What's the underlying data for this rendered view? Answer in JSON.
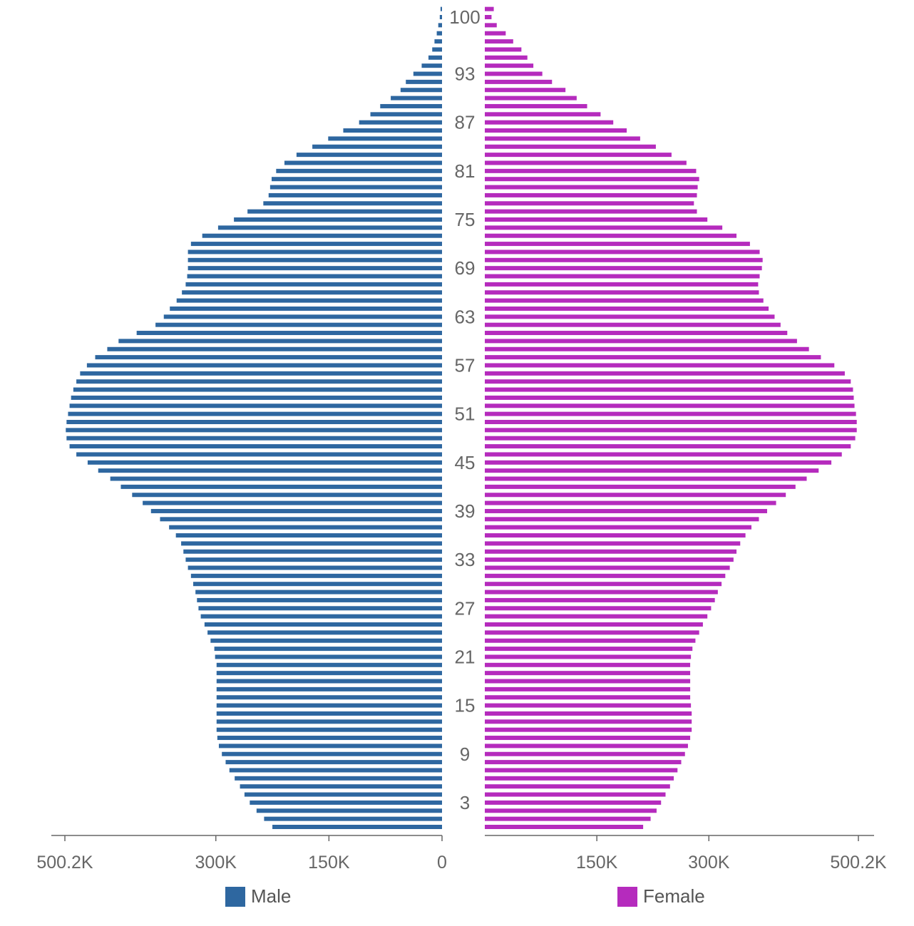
{
  "colors": {
    "male": "#2e67a0",
    "female": "#b52bbd",
    "axis": "#666666",
    "label": "#666666"
  },
  "legend": {
    "male_label": "Male",
    "female_label": "Female"
  },
  "chart_data": {
    "type": "bar",
    "orientation": "horizontal",
    "subtype": "population-pyramid",
    "title": "",
    "ages": [
      0,
      1,
      2,
      3,
      4,
      5,
      6,
      7,
      8,
      9,
      10,
      11,
      12,
      13,
      14,
      15,
      16,
      17,
      18,
      19,
      20,
      21,
      22,
      23,
      24,
      25,
      26,
      27,
      28,
      29,
      30,
      31,
      32,
      33,
      34,
      35,
      36,
      37,
      38,
      39,
      40,
      41,
      42,
      43,
      44,
      45,
      46,
      47,
      48,
      49,
      50,
      51,
      52,
      53,
      54,
      55,
      56,
      57,
      58,
      59,
      60,
      61,
      62,
      63,
      64,
      65,
      66,
      67,
      68,
      69,
      70,
      71,
      72,
      73,
      74,
      75,
      76,
      77,
      78,
      79,
      80,
      81,
      82,
      83,
      84,
      85,
      86,
      87,
      88,
      89,
      90,
      91,
      92,
      93,
      94,
      95,
      96,
      97,
      98,
      99,
      100,
      101
    ],
    "age_tick_labels": [
      "3",
      "9",
      "15",
      "21",
      "27",
      "33",
      "39",
      "45",
      "51",
      "57",
      "63",
      "69",
      "75",
      "81",
      "87",
      "93",
      "100"
    ],
    "x_tick_labels": [
      "500.2K",
      "300K",
      "150K",
      "0",
      "150K",
      "300K",
      "500.2K"
    ],
    "x_range": [
      0,
      500200
    ],
    "series": [
      {
        "name": "Male",
        "values": [
          225000,
          236000,
          246000,
          255000,
          262000,
          268000,
          275000,
          282000,
          287000,
          292000,
          296000,
          298000,
          299000,
          299000,
          299000,
          299000,
          299000,
          299000,
          299000,
          299000,
          299000,
          301000,
          302000,
          307000,
          311000,
          315000,
          320000,
          323000,
          325000,
          327000,
          330000,
          333000,
          337000,
          340000,
          343000,
          346000,
          353000,
          362000,
          374000,
          386000,
          397000,
          411000,
          426000,
          440000,
          456000,
          470000,
          485000,
          494000,
          498000,
          499000,
          498000,
          496000,
          494000,
          492000,
          489000,
          485000,
          480000,
          471000,
          460000,
          444000,
          429000,
          405000,
          380000,
          369000,
          361000,
          352000,
          345000,
          340000,
          338000,
          337000,
          337000,
          337000,
          333000,
          318000,
          297000,
          276000,
          258000,
          237000,
          230000,
          228000,
          226000,
          220000,
          209000,
          193000,
          172000,
          151000,
          131000,
          110000,
          95000,
          82000,
          68000,
          55000,
          48000,
          38000,
          27000,
          18000,
          13000,
          10000,
          7000,
          5000,
          3000,
          2000
        ]
      },
      {
        "name": "Female",
        "values": [
          212000,
          222000,
          230000,
          236000,
          242000,
          248000,
          253000,
          258000,
          263000,
          268000,
          272000,
          275000,
          277000,
          277000,
          277000,
          276000,
          275000,
          275000,
          275000,
          275000,
          275000,
          276000,
          278000,
          282000,
          287000,
          292000,
          298000,
          303000,
          308000,
          312000,
          317000,
          322000,
          328000,
          333000,
          337000,
          342000,
          349000,
          357000,
          367000,
          378000,
          390000,
          403000,
          416000,
          431000,
          447000,
          464000,
          478000,
          490000,
          496000,
          498000,
          498000,
          497000,
          495000,
          494000,
          493000,
          490000,
          482000,
          468000,
          450000,
          434000,
          418000,
          405000,
          396000,
          388000,
          380000,
          373000,
          367000,
          366000,
          368000,
          371000,
          372000,
          368000,
          355000,
          337000,
          318000,
          298000,
          284000,
          280000,
          284000,
          285000,
          287000,
          283000,
          270000,
          250000,
          229000,
          208000,
          190000,
          172000,
          155000,
          137000,
          123000,
          108000,
          90000,
          77000,
          65000,
          57000,
          49000,
          38000,
          28000,
          16000,
          9000,
          12000
        ]
      }
    ],
    "legend_position": "bottom",
    "grid": false
  }
}
